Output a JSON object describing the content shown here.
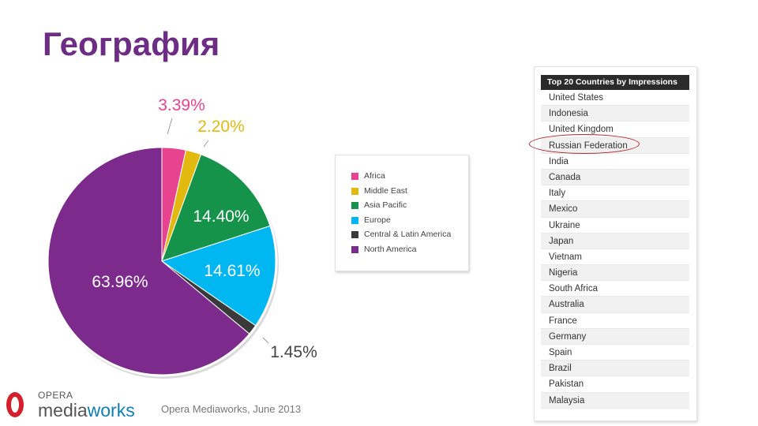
{
  "slide": {
    "title": "География",
    "source": "Opera Mediaworks, June 2013",
    "logo": {
      "opera": "OPERA",
      "media": "media",
      "works": "works"
    }
  },
  "chart_data": {
    "type": "pie",
    "title": "",
    "slices": [
      {
        "name": "Africa",
        "value": 3.39,
        "label": "3.39%",
        "color": "#e8438f",
        "label_color": "#e8438f"
      },
      {
        "name": "Middle East",
        "value": 2.2,
        "label": "2.20%",
        "color": "#e2b90f",
        "label_color": "#e2b90f"
      },
      {
        "name": "Asia Pacific",
        "value": 14.4,
        "label": "14.40%",
        "color": "#16934a",
        "label_color": "#ffffff"
      },
      {
        "name": "Europe",
        "value": 14.61,
        "label": "14.61%",
        "color": "#00b7f1",
        "label_color": "#ffffff"
      },
      {
        "name": "Central & Latin America",
        "value": 1.45,
        "label": "1.45%",
        "color": "#3a3a3a",
        "label_color": "#444444"
      },
      {
        "name": "North America",
        "value": 63.96,
        "label": "63.96%",
        "color": "#7c2a8c",
        "label_color": "#ffffff"
      }
    ],
    "legend_placement": "right"
  },
  "table": {
    "header": "Top 20 Countries by Impressions",
    "rows": [
      "United States",
      "Indonesia",
      "United Kingdom",
      "Russian Federation",
      "India",
      "Canada",
      "Italy",
      "Mexico",
      "Ukraine",
      "Japan",
      "Vietnam",
      "Nigeria",
      "South Africa",
      "Australia",
      "France",
      "Germany",
      "Spain",
      "Brazil",
      "Pakistan",
      "Malaysia"
    ],
    "highlighted": "Russian Federation",
    "highlight_color": "#b3262a"
  }
}
